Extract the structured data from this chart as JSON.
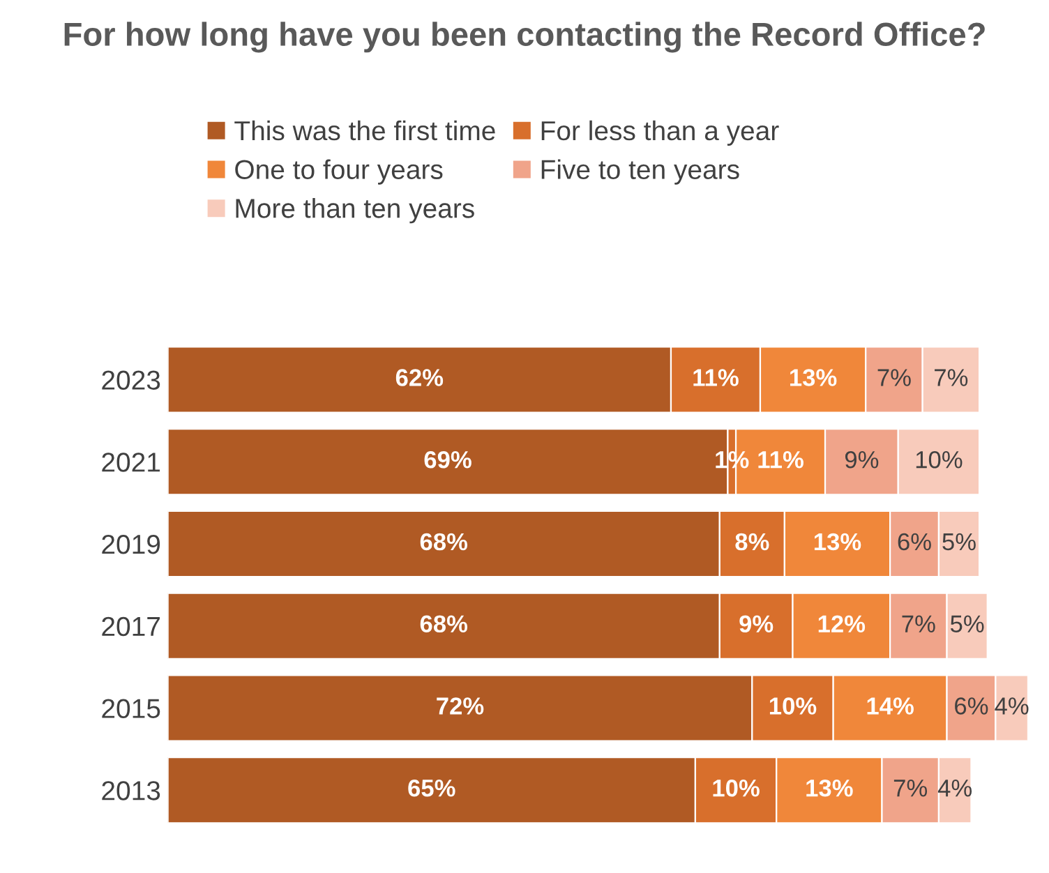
{
  "chart_data": {
    "type": "bar",
    "orientation": "horizontal",
    "stacked": true,
    "title": "For how long have you been contacting the Record Office?",
    "categories": [
      "2023",
      "2021",
      "2019",
      "2017",
      "2015",
      "2013"
    ],
    "series": [
      {
        "name": "This was the first time",
        "color": "#b05a24",
        "values": [
          62,
          69,
          68,
          68,
          72,
          65
        ],
        "value_labels": [
          "62%",
          "69%",
          "68%",
          "68%",
          "72%",
          "65%"
        ]
      },
      {
        "name": "For less than a year",
        "color": "#d86f2c",
        "values": [
          11,
          1,
          8,
          9,
          10,
          10
        ],
        "value_labels": [
          "11%",
          "1%",
          "8%",
          "9%",
          "10%",
          "10%"
        ]
      },
      {
        "name": "One to four years",
        "color": "#f0873a",
        "values": [
          13,
          11,
          13,
          12,
          14,
          13
        ],
        "value_labels": [
          "13%",
          "11%",
          "13%",
          "12%",
          "14%",
          "13%"
        ]
      },
      {
        "name": "Five to ten years",
        "color": "#f0a48a",
        "values": [
          7,
          9,
          6,
          7,
          6,
          7
        ],
        "value_labels": [
          "7%",
          "9%",
          "6%",
          "7%",
          "6%",
          "7%"
        ]
      },
      {
        "name": "More than ten years",
        "color": "#f8cbbb",
        "values": [
          7,
          10,
          5,
          5,
          4,
          4
        ],
        "value_labels": [
          "7%",
          "10%",
          "5%",
          "5%",
          "4%",
          "4%"
        ]
      }
    ],
    "tick_labels": "y",
    "legend": "top"
  }
}
